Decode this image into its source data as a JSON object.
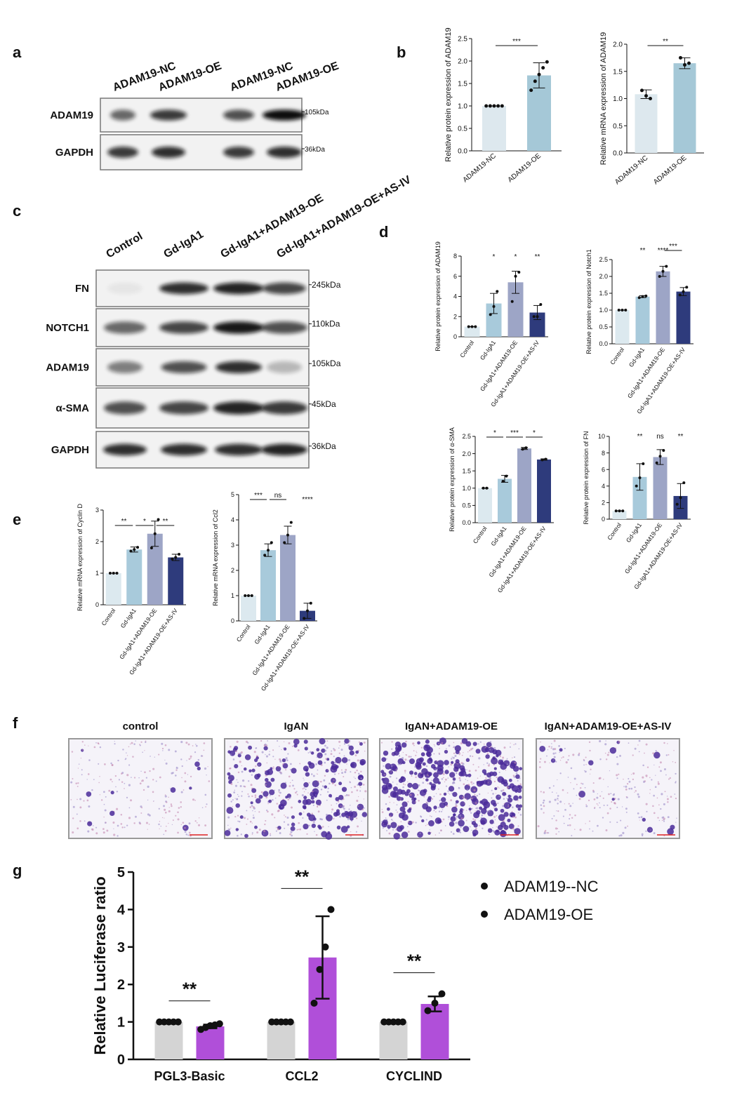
{
  "panel_labels": [
    "a",
    "b",
    "c",
    "d",
    "e",
    "f",
    "g"
  ],
  "blot_a": {
    "lanes": [
      "ADAM19-NC",
      "ADAM19-OE",
      "ADAM19-NC",
      "ADAM19-OE"
    ],
    "rows": [
      {
        "name": "ADAM19",
        "size": "105kDa"
      },
      {
        "name": "GAPDH",
        "size": "36kDa"
      }
    ]
  },
  "blot_c": {
    "lanes": [
      "Control",
      "Gd-IgA1",
      "Gd-IgA1+ADAM19-OE",
      "Gd-IgA1+ADAM19-OE+AS-IV"
    ],
    "rows": [
      {
        "name": "FN",
        "size": "245kDa"
      },
      {
        "name": "NOTCH1",
        "size": "110kDa"
      },
      {
        "name": "ADAM19",
        "size": "105kDa"
      },
      {
        "name": "α-SMA",
        "size": "45kDa"
      },
      {
        "name": "GAPDH",
        "size": "36kDa"
      }
    ]
  },
  "migration_f": {
    "titles": [
      "control",
      "IgAN",
      "IgAN+ADAM19-OE",
      "IgAN+ADAM19-OE+AS-IV"
    ]
  },
  "chart_data": [
    {
      "type": "bar",
      "y_label": "Relative protein expression of ADAM19",
      "categories": [
        "ADAM19-NC",
        "ADAM19-OE"
      ],
      "values": [
        1.0,
        1.68
      ],
      "errors": [
        0,
        0.28
      ],
      "points": [
        [
          1,
          1,
          1,
          1,
          1
        ],
        [
          1.35,
          1.55,
          1.7,
          1.85,
          1.98
        ]
      ],
      "colors": [
        "#dde8ee",
        "#a5c8d7"
      ],
      "ylim": [
        0,
        2.5
      ],
      "yticks": [
        {
          "value": 0,
          "label": "0.0"
        },
        0.5,
        {
          "value": 1,
          "label": "1.0"
        },
        1.5,
        {
          "value": 2,
          "label": "2.0"
        },
        2.5
      ],
      "significance": [
        {
          "label": "***",
          "groups": [
            0,
            1
          ]
        }
      ]
    },
    {
      "type": "bar",
      "y_label": "Relative mRNA expression of ADAM19",
      "categories": [
        "ADAM19-NC",
        "ADAM19-OE"
      ],
      "values": [
        1.08,
        1.65
      ],
      "errors": [
        0.08,
        0.1
      ],
      "points": [
        [
          1.15,
          1.05,
          1.0
        ],
        [
          1.75,
          1.62,
          1.65
        ]
      ],
      "colors": [
        "#dde8ee",
        "#a5c8d7"
      ],
      "ylim": [
        0,
        2
      ],
      "yticks": [
        {
          "value": 0,
          "label": "0.0"
        },
        0.5,
        {
          "value": 1,
          "label": "1.0"
        },
        1.5,
        {
          "value": 2,
          "label": "2.0"
        }
      ],
      "significance": [
        {
          "label": "**",
          "groups": [
            0,
            1
          ]
        }
      ]
    },
    {
      "type": "bar",
      "y_label": "Relative protein expression of ADAM19",
      "categories": [
        "Control",
        "Gd-IgA1",
        "Gd-IgA1+ADAM19-OE",
        "Gd-IgA1+ADAM19-OE+AS-IV"
      ],
      "values": [
        1,
        3.3,
        5.4,
        2.4
      ],
      "errors": [
        0,
        1.0,
        1.1,
        0.7
      ],
      "points": [
        [
          1,
          1,
          1
        ],
        [
          2.2,
          3.0,
          4.5
        ],
        [
          3.5,
          6.0,
          6.4
        ],
        [
          2.0,
          2.0,
          3.2
        ]
      ],
      "colors": [
        "#dce9ef",
        "#a8cadb",
        "#9da5c6",
        "#2e3b7c"
      ],
      "ylim": [
        0,
        8
      ],
      "yticks": [
        0,
        2,
        4,
        6,
        8
      ],
      "significance": [
        {
          "label": "*",
          "groups": [
            1
          ]
        },
        {
          "label": "*",
          "groups": [
            2
          ]
        },
        {
          "label": "**",
          "groups": [
            3
          ]
        }
      ]
    },
    {
      "type": "bar",
      "y_label": "Relative protein expression of Notch1",
      "categories": [
        "Control",
        "Gd-IgA1",
        "Gd-IgA1+ADAM19-OE",
        "Gd-IgA1+ADAM19-OE+AS-IV"
      ],
      "values": [
        1,
        1.4,
        2.15,
        1.55
      ],
      "errors": [
        0,
        0.03,
        0.15,
        0.12
      ],
      "points": [
        [
          1,
          1,
          1
        ],
        [
          1.37,
          1.4,
          1.42
        ],
        [
          2.0,
          2.15,
          2.3
        ],
        [
          1.45,
          1.55,
          1.68
        ]
      ],
      "colors": [
        "#dce9ef",
        "#a8cadb",
        "#9da5c6",
        "#2e3b7c"
      ],
      "ylim": [
        0,
        2.5
      ],
      "yticks": [
        {
          "value": 0,
          "label": "0.0"
        },
        0.5,
        {
          "value": 1,
          "label": "1.0"
        },
        1.5,
        {
          "value": 2,
          "label": "2.0"
        },
        2.5
      ],
      "significance": [
        {
          "label": "**",
          "groups": [
            1
          ]
        },
        {
          "label": "****",
          "groups": [
            2
          ]
        },
        {
          "label": "***",
          "groups": [
            2,
            3
          ]
        }
      ]
    },
    {
      "type": "bar",
      "y_label": "Relative protein expression of α-SMA",
      "categories": [
        "Control",
        "Gd-IgA1",
        "Gd-IgA1+ADAM19-OE",
        "Gd-IgA1+ADAM19-OE+AS-IV"
      ],
      "values": [
        1,
        1.27,
        2.15,
        1.83
      ],
      "errors": [
        0,
        0.1,
        0.03,
        0.02
      ],
      "points": [
        [
          1,
          1
        ],
        [
          1.2,
          1.35
        ],
        [
          2.13,
          2.17
        ],
        [
          1.82,
          1.84
        ]
      ],
      "colors": [
        "#dce9ef",
        "#a8cadb",
        "#9da5c6",
        "#2e3b7c"
      ],
      "ylim": [
        0,
        2.5
      ],
      "yticks": [
        {
          "value": 0,
          "label": "0.0"
        },
        0.5,
        {
          "value": 1,
          "label": "1.0"
        },
        1.5,
        {
          "value": 2,
          "label": "2.0"
        },
        2.5
      ],
      "significance": [
        {
          "label": "*",
          "groups": [
            0,
            1
          ]
        },
        {
          "label": "***",
          "groups": [
            1,
            2
          ]
        },
        {
          "label": "*",
          "groups": [
            2,
            3
          ]
        }
      ]
    },
    {
      "type": "bar",
      "y_label": "Relative protein expression of FN",
      "categories": [
        "Control",
        "Gd-IgA1",
        "Gd-IgA1+ADAM19-OE",
        "Gd-IgA1+ADAM19-OE+AS-IV"
      ],
      "values": [
        1,
        5.1,
        7.5,
        2.8
      ],
      "errors": [
        0,
        1.6,
        0.9,
        1.5
      ],
      "points": [
        [
          1,
          1,
          1
        ],
        [
          4.0,
          5.0,
          6.7
        ],
        [
          6.8,
          7.6,
          8.3
        ],
        [
          1.8,
          2.6,
          4.4
        ]
      ],
      "colors": [
        "#dce9ef",
        "#a8cadb",
        "#9da5c6",
        "#2e3b7c"
      ],
      "ylim": [
        0,
        10
      ],
      "yticks": [
        0,
        2,
        4,
        6,
        8,
        10
      ],
      "significance": [
        {
          "label": "**",
          "groups": [
            1
          ]
        },
        {
          "label": "ns",
          "groups": [
            2
          ]
        },
        {
          "label": "**",
          "groups": [
            3
          ]
        }
      ]
    },
    {
      "type": "bar",
      "y_label": "Relative mRNA expression of Cyclin D",
      "categories": [
        "Control",
        "Gd-IgA1",
        "Gd-IgA1+ADAM19-OE",
        "Gd-IgA1+ADAM19-OE+AS-IV"
      ],
      "values": [
        1,
        1.75,
        2.25,
        1.5
      ],
      "errors": [
        0,
        0.08,
        0.4,
        0.1
      ],
      "points": [
        [
          1,
          1,
          1
        ],
        [
          1.7,
          1.75,
          1.82
        ],
        [
          1.8,
          2.25,
          2.7
        ],
        [
          1.45,
          1.5,
          1.6
        ]
      ],
      "colors": [
        "#dce9ef",
        "#a8cadb",
        "#9da5c6",
        "#2e3b7c"
      ],
      "ylim": [
        0,
        3
      ],
      "yticks": [
        0,
        1,
        2,
        3
      ],
      "significance": [
        {
          "label": "**",
          "groups": [
            0,
            1
          ]
        },
        {
          "label": "*",
          "groups": [
            1,
            2
          ]
        },
        {
          "label": "**",
          "groups": [
            2,
            3
          ]
        }
      ]
    },
    {
      "type": "bar",
      "y_label": "Relative mRNA expression of Ccl2",
      "categories": [
        "Control",
        "Gd-IgA1",
        "Gd-IgA1+ADAM19-OE",
        "Gd-IgA1+ADAM19-OE+AS-IV"
      ],
      "values": [
        1,
        2.8,
        3.4,
        0.4
      ],
      "errors": [
        0,
        0.25,
        0.35,
        0.3
      ],
      "points": [
        [
          1,
          1,
          1
        ],
        [
          2.6,
          2.8,
          3.1
        ],
        [
          3.1,
          3.4,
          3.9
        ],
        [
          0.1,
          0.4,
          0.7
        ]
      ],
      "colors": [
        "#dce9ef",
        "#a8cadb",
        "#9da5c6",
        "#2e3b7c"
      ],
      "ylim": [
        0,
        5
      ],
      "yticks": [
        0,
        1,
        2,
        3,
        4,
        5
      ],
      "significance": [
        {
          "label": "***",
          "groups": [
            0,
            1
          ]
        },
        {
          "label": "ns",
          "groups": [
            1,
            2
          ]
        },
        {
          "label": "****",
          "groups": [
            3
          ]
        }
      ]
    },
    {
      "type": "grouped_bar",
      "y_label": "Relative Luciferase ratio",
      "categories": [
        "PGL3-Basic",
        "CCL2",
        "CYCLIND"
      ],
      "series": [
        {
          "name": "ADAM19--NC",
          "color": "#d4d4d4",
          "values": [
            1,
            1,
            1
          ],
          "errors": [
            0,
            0,
            0
          ],
          "points": [
            [
              1,
              1,
              1,
              1,
              1
            ],
            [
              1,
              1,
              1,
              1,
              1
            ],
            [
              1,
              1,
              1,
              1,
              1
            ]
          ]
        },
        {
          "name": "ADAM19-OE",
          "color": "#b04fd9",
          "values": [
            0.88,
            2.72,
            1.48
          ],
          "errors": [
            0.05,
            1.1,
            0.2
          ],
          "points": [
            [
              0.8,
              0.85,
              0.9,
              0.92,
              0.95
            ],
            [
              1.5,
              2.4,
              3.0,
              4.0
            ],
            [
              1.3,
              1.5,
              1.75
            ]
          ]
        }
      ],
      "ylim": [
        0,
        5
      ],
      "yticks": [
        0,
        1,
        2,
        3,
        4,
        5
      ],
      "legend": "right",
      "significance": [
        {
          "label": "**",
          "groups": [
            0
          ]
        },
        {
          "label": "**",
          "groups": [
            1
          ]
        },
        {
          "label": "**",
          "groups": [
            2
          ]
        }
      ]
    }
  ]
}
